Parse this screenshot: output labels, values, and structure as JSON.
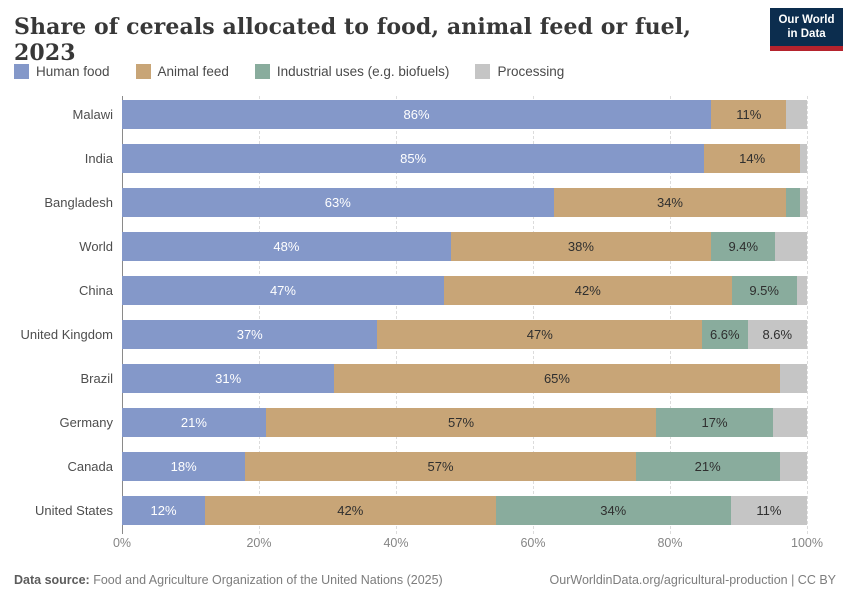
{
  "header": {
    "logo": {
      "line1": "Our World",
      "line2": "in Data",
      "bg_color": "#0c2d4e",
      "accent_color": "#b5232d"
    }
  },
  "chart_data": {
    "type": "bar",
    "variant": "horizontal-stacked",
    "title": "Share of cereals allocated to food, animal feed or fuel, 2023",
    "categories": [
      "Malawi",
      "India",
      "Bangladesh",
      "World",
      "China",
      "United Kingdom",
      "Brazil",
      "Germany",
      "Canada",
      "United States"
    ],
    "series": [
      {
        "name": "Human food",
        "color": "#8498c9",
        "label_color": "#ffffff",
        "values": [
          86,
          85,
          63,
          48,
          47,
          37,
          31,
          21,
          18,
          12
        ],
        "labels": [
          "86%",
          "85%",
          "63%",
          "48%",
          "47%",
          "37%",
          "31%",
          "21%",
          "18%",
          "12%"
        ]
      },
      {
        "name": "Animal feed",
        "color": "#c8a577",
        "label_color": "#2f2f2f",
        "values": [
          11,
          14,
          34,
          38,
          42,
          47,
          65,
          57,
          57,
          42
        ],
        "labels": [
          "11%",
          "14%",
          "34%",
          "38%",
          "42%",
          "47%",
          "65%",
          "57%",
          "57%",
          "42%"
        ]
      },
      {
        "name": "Industrial uses (e.g. biofuels)",
        "color": "#89ac9d",
        "label_color": "#2f2f2f",
        "values": [
          0,
          0,
          2,
          9.4,
          9.5,
          6.6,
          0,
          17,
          21,
          34
        ],
        "labels": [
          "",
          "",
          "",
          "9.4%",
          "9.5%",
          "6.6%",
          "",
          "17%",
          "21%",
          "34%"
        ]
      },
      {
        "name": "Processing",
        "color": "#c5c5c5",
        "label_color": "#2f2f2f",
        "values": [
          3,
          1,
          1,
          4.6,
          1.5,
          8.6,
          4,
          5,
          4,
          11
        ],
        "labels": [
          "",
          "",
          "",
          "",
          "",
          "8.6%",
          "",
          "",
          "",
          "11%"
        ]
      }
    ],
    "xticks": [
      "0%",
      "20%",
      "40%",
      "60%",
      "80%",
      "100%"
    ],
    "xlim": [
      0,
      100
    ],
    "grid": "vertical-dashed",
    "legend_position": "top-left"
  },
  "footer": {
    "source_label": "Data source:",
    "source_text": " Food and Agriculture Organization of the United Nations (2025)",
    "credit": "OurWorldinData.org/agricultural-production | CC BY"
  }
}
